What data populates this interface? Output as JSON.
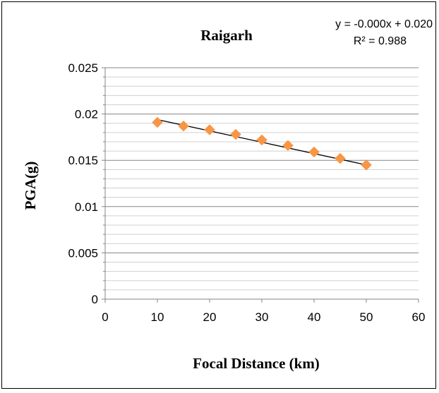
{
  "chart_data": {
    "type": "scatter",
    "title": "Raigarh",
    "xlabel": "Focal Distance (km)",
    "ylabel": "PGA(g)",
    "xlim": [
      0,
      60
    ],
    "ylim": [
      0,
      0.025
    ],
    "x_ticks": [
      "0",
      "10",
      "20",
      "30",
      "40",
      "50",
      "60"
    ],
    "y_ticks": [
      "0",
      "0.005",
      "0.01",
      "0.015",
      "0.02",
      "0.025"
    ],
    "grid": true,
    "legend": "none",
    "series": [
      {
        "marker": "diamond",
        "color": "#F79646",
        "points": [
          {
            "x": 10,
            "y": 0.0191
          },
          {
            "x": 15,
            "y": 0.0187
          },
          {
            "x": 20,
            "y": 0.0183
          },
          {
            "x": 25,
            "y": 0.0178
          },
          {
            "x": 30,
            "y": 0.0172
          },
          {
            "x": 35,
            "y": 0.0166
          },
          {
            "x": 40,
            "y": 0.0159
          },
          {
            "x": 45,
            "y": 0.0152
          },
          {
            "x": 50,
            "y": 0.0145
          }
        ]
      }
    ],
    "trendline": {
      "type": "linear",
      "color": "#000000",
      "equation": "y = -0.000x + 0.020",
      "r2_label": "R² = 0.988",
      "x_range": [
        10,
        50
      ],
      "y_values": [
        0.0194,
        0.0145
      ]
    }
  }
}
